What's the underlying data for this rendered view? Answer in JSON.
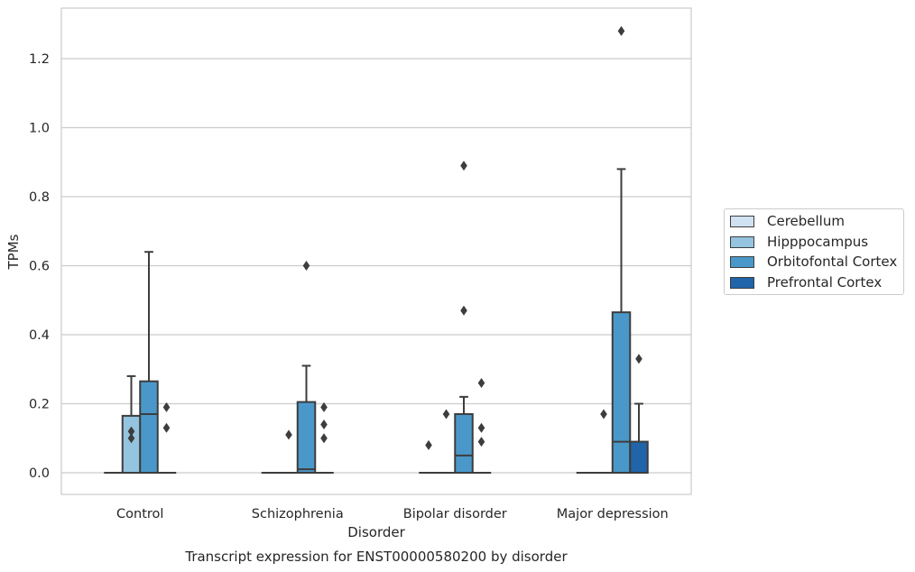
{
  "chart_data": {
    "type": "box",
    "title": "Transcript expression for ENST00000580200 by disorder",
    "xlabel": "Disorder",
    "ylabel": "TPMs",
    "ylim": [
      -0.063,
      1.35
    ],
    "yticks": [
      "0.0",
      "0.2",
      "0.4",
      "0.6",
      "0.8",
      "1.0",
      "1.2"
    ],
    "ytick_values": [
      0.0,
      0.2,
      0.4,
      0.6,
      0.8,
      1.0,
      1.2
    ],
    "categories": [
      "Control",
      "Schizophrenia",
      "Bipolar disorder",
      "Major depression"
    ],
    "grid": "horizontal",
    "legend_position": "right",
    "series": [
      {
        "name": "Cerebellum",
        "color": "#d0e1f2",
        "boxes": [
          {
            "q1": 0,
            "median": 0,
            "q3": 0,
            "whisker_low": 0,
            "whisker_high": 0,
            "outliers": []
          },
          {
            "q1": 0,
            "median": 0,
            "q3": 0,
            "whisker_low": 0,
            "whisker_high": 0,
            "outliers": []
          },
          {
            "q1": 0,
            "median": 0,
            "q3": 0,
            "whisker_low": 0,
            "whisker_high": 0,
            "outliers": [
              0.08
            ]
          },
          {
            "q1": 0,
            "median": 0,
            "q3": 0,
            "whisker_low": 0,
            "whisker_high": 0,
            "outliers": []
          }
        ]
      },
      {
        "name": "Hipppocampus",
        "color": "#94c4df",
        "boxes": [
          {
            "q1": 0,
            "median": 0,
            "q3": 0.165,
            "whisker_low": 0,
            "whisker_high": 0.28,
            "outliers": [
              0.1,
              0.12
            ]
          },
          {
            "q1": 0,
            "median": 0,
            "q3": 0,
            "whisker_low": 0,
            "whisker_high": 0,
            "outliers": [
              0.11
            ]
          },
          {
            "q1": 0,
            "median": 0,
            "q3": 0,
            "whisker_low": 0,
            "whisker_high": 0,
            "outliers": [
              0.17
            ]
          },
          {
            "q1": 0,
            "median": 0,
            "q3": 0,
            "whisker_low": 0,
            "whisker_high": 0,
            "outliers": [
              0.17
            ]
          }
        ]
      },
      {
        "name": "Orbitofontal Cortex",
        "color": "#4a98c9",
        "boxes": [
          {
            "q1": 0,
            "median": 0.17,
            "q3": 0.265,
            "whisker_low": 0,
            "whisker_high": 0.64,
            "outliers": []
          },
          {
            "q1": 0,
            "median": 0.01,
            "q3": 0.205,
            "whisker_low": 0,
            "whisker_high": 0.31,
            "outliers": [
              0.6
            ]
          },
          {
            "q1": 0,
            "median": 0.05,
            "q3": 0.17,
            "whisker_low": 0,
            "whisker_high": 0.22,
            "outliers": [
              0.47,
              0.89
            ]
          },
          {
            "q1": 0,
            "median": 0.09,
            "q3": 0.465,
            "whisker_low": 0,
            "whisker_high": 0.88,
            "outliers": [
              1.28
            ]
          }
        ]
      },
      {
        "name": "Prefrontal Cortex",
        "color": "#2064aa",
        "boxes": [
          {
            "q1": 0,
            "median": 0,
            "q3": 0,
            "whisker_low": 0,
            "whisker_high": 0,
            "outliers": [
              0.13,
              0.19
            ]
          },
          {
            "q1": 0,
            "median": 0,
            "q3": 0,
            "whisker_low": 0,
            "whisker_high": 0,
            "outliers": [
              0.1,
              0.14,
              0.19
            ]
          },
          {
            "q1": 0,
            "median": 0,
            "q3": 0,
            "whisker_low": 0,
            "whisker_high": 0,
            "outliers": [
              0.09,
              0.13,
              0.26
            ]
          },
          {
            "q1": 0,
            "median": 0,
            "q3": 0.09,
            "whisker_low": 0,
            "whisker_high": 0.2,
            "outliers": [
              0.33
            ]
          }
        ]
      }
    ]
  }
}
